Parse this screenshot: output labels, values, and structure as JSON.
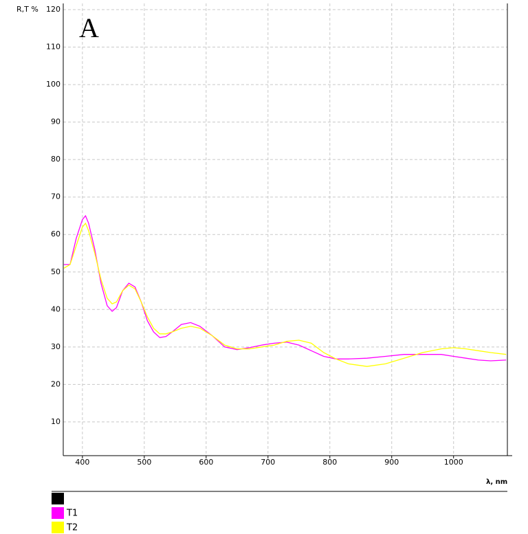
{
  "chart_data": {
    "type": "line",
    "annotation": "A",
    "y_label": "R,T  %",
    "x_label": "λ, nm",
    "xlim": [
      369,
      1087
    ],
    "ylim": [
      1,
      120
    ],
    "xticks": [
      400,
      500,
      600,
      700,
      800,
      900,
      1000
    ],
    "yticks": [
      10,
      20,
      30,
      40,
      50,
      60,
      70,
      80,
      90,
      100,
      110,
      120
    ],
    "grid": true,
    "x": [
      370,
      380,
      390,
      400,
      405,
      410,
      420,
      430,
      440,
      448,
      455,
      465,
      475,
      485,
      495,
      505,
      515,
      525,
      535,
      545,
      560,
      575,
      590,
      610,
      630,
      650,
      670,
      690,
      710,
      730,
      750,
      770,
      790,
      810,
      830,
      860,
      890,
      920,
      950,
      980,
      1000,
      1020,
      1040,
      1060,
      1085
    ],
    "series": [
      {
        "name": "T1",
        "color": "#ff00ff",
        "values": [
          52,
          52,
          59,
          64,
          65,
          63,
          56,
          47,
          41,
          39.5,
          40.5,
          45,
          47,
          46,
          42,
          37,
          34,
          32.5,
          32.8,
          34,
          36,
          36.5,
          35.5,
          33,
          30,
          29.3,
          29.8,
          30.5,
          31,
          31.3,
          30.5,
          29,
          27.5,
          26.8,
          26.8,
          27,
          27.5,
          28,
          28,
          28,
          27.5,
          27,
          26.5,
          26.3,
          26.5
        ]
      },
      {
        "name": "T2",
        "color": "#ffff00",
        "values": [
          51,
          52,
          57,
          62,
          63,
          61,
          55,
          48,
          43,
          41.5,
          42,
          45,
          46.5,
          45.5,
          42,
          38,
          35,
          33.5,
          33.5,
          34,
          35,
          35.5,
          35,
          33,
          30.5,
          29.5,
          29.5,
          30,
          30.5,
          31.5,
          31.8,
          31,
          28.5,
          26.8,
          25.5,
          24.8,
          25.5,
          27,
          28.5,
          29.5,
          29.8,
          29.5,
          29,
          28.5,
          28
        ]
      }
    ]
  }
}
